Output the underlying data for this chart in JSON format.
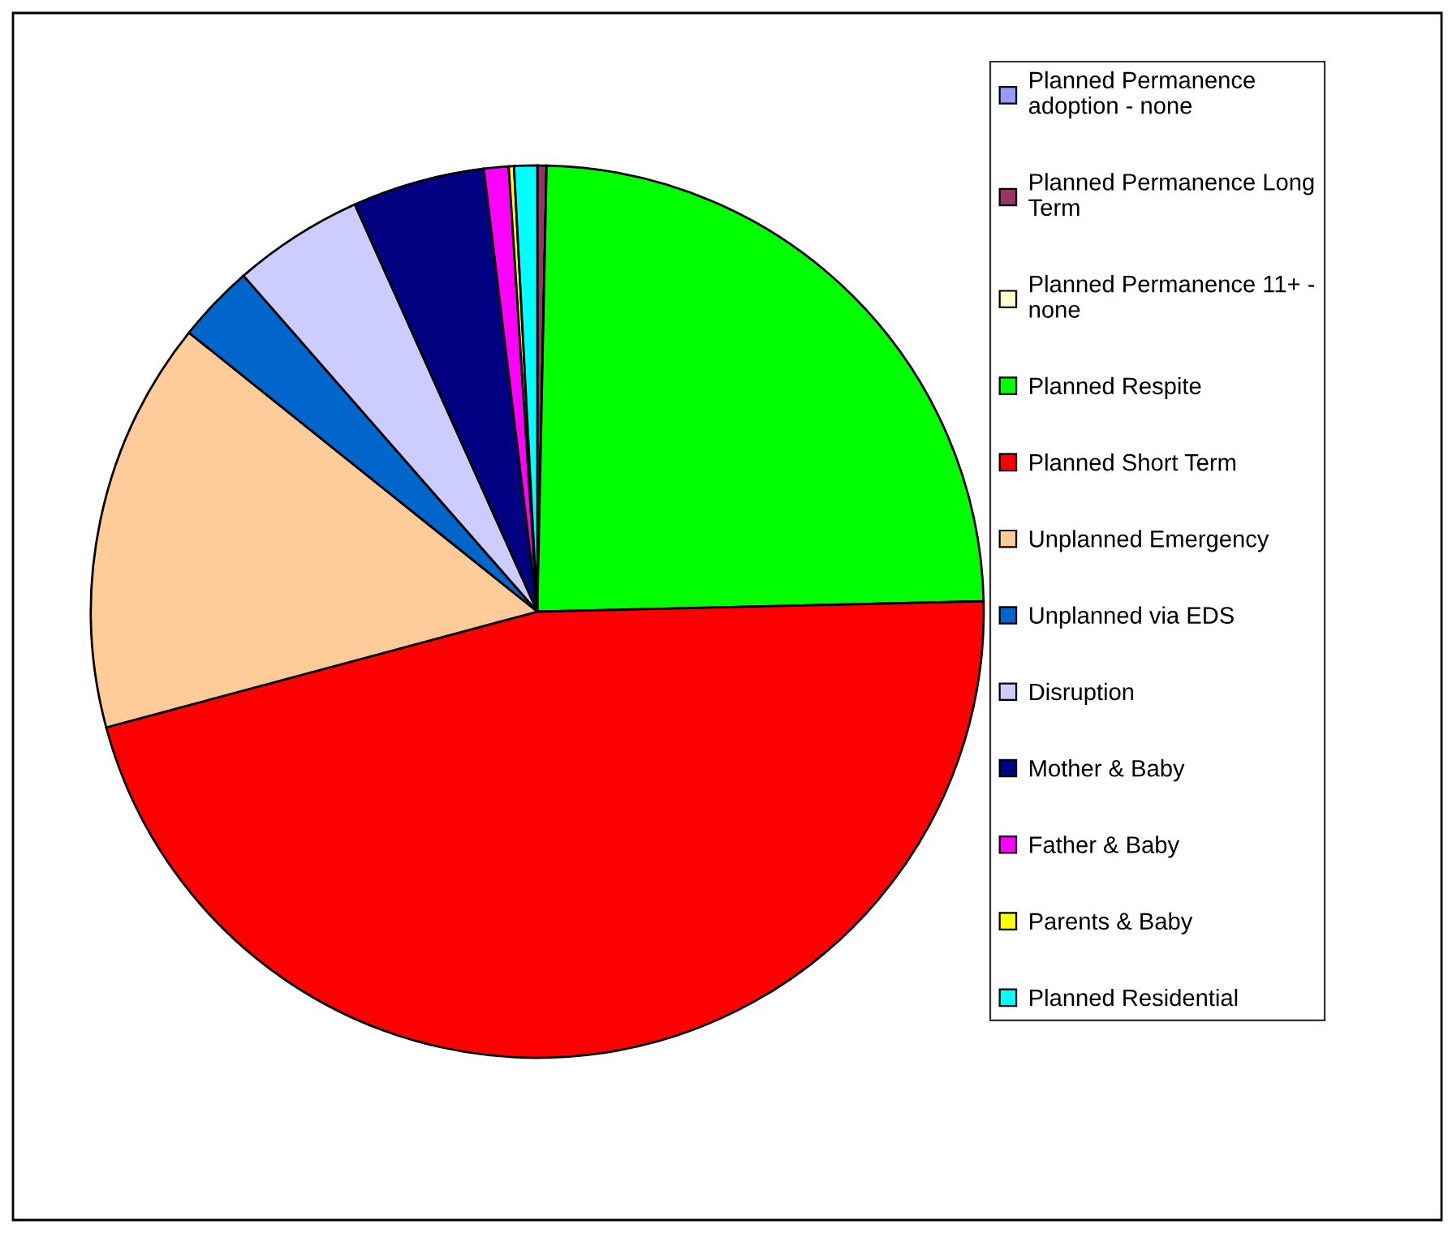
{
  "chart_data": {
    "type": "pie",
    "categories": [
      "Planned Permanence adoption - none",
      "Planned Permanence Long Term",
      "Planned Permanence 11+ - none",
      "Planned Respite",
      "Planned Short Term",
      "Unplanned Emergency",
      "Unplanned via EDS",
      "Disruption",
      "Mother & Baby",
      "Father & Baby",
      "Parents & Baby",
      "Planned Residential"
    ],
    "values": [
      0,
      0.33,
      0,
      24.25,
      46.1,
      14.9,
      2.81,
      4.72,
      4.78,
      0.89,
      0.19,
      0.83
    ],
    "colors": [
      "#9999ff",
      "#993366",
      "#ffffcc",
      "#00ff00",
      "#ff0000",
      "#ffcc99",
      "#0066cc",
      "#ccccff",
      "#000080",
      "#ff00ff",
      "#ffff00",
      "#00ffff"
    ],
    "legend": "right"
  }
}
